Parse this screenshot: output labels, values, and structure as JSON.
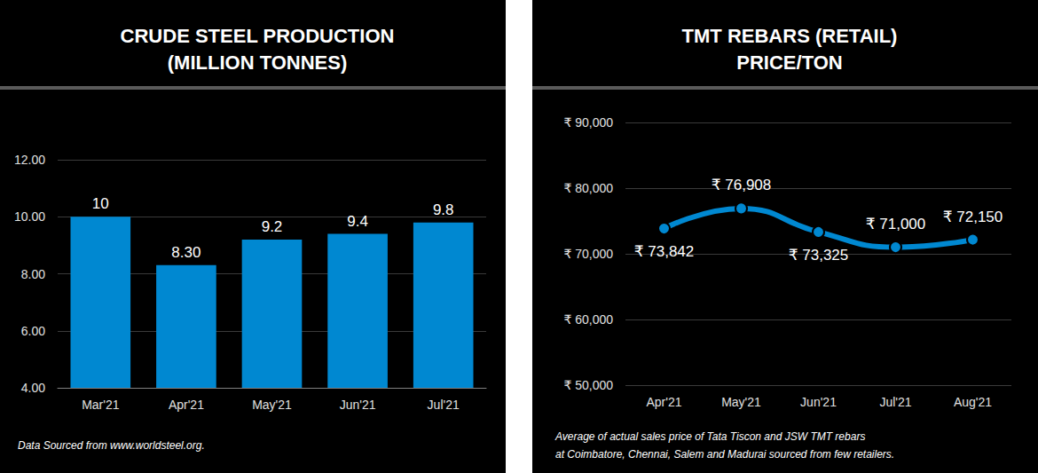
{
  "chart_data": [
    {
      "type": "bar",
      "title": "CRUDE STEEL PRODUCTION\n(MILLION TONNES)",
      "categories": [
        "Mar'21",
        "Apr'21",
        "May'21",
        "Jun'21",
        "Jul'21"
      ],
      "values": [
        10,
        8.3,
        9.2,
        9.4,
        9.8
      ],
      "value_labels": [
        "10",
        "8.30",
        "9.2",
        "9.4",
        "9.8"
      ],
      "color": "#0088d1",
      "ylim": [
        4,
        12
      ],
      "yticks": [
        {
          "value": 4,
          "label": "4.00"
        },
        {
          "value": 6,
          "label": "6.00"
        },
        {
          "value": 8,
          "label": "8.00"
        },
        {
          "value": 10,
          "label": "10.00"
        },
        {
          "value": 12,
          "label": "12.00"
        }
      ],
      "grid": true,
      "data_labels": true,
      "annotations": [
        "Data Sourced from www.worldsteel.org."
      ]
    },
    {
      "type": "line",
      "title": "TMT REBARS (RETAIL)\nPRICE/TON",
      "categories": [
        "Apr'21",
        "May'21",
        "Jun'21",
        "Jul'21",
        "Aug'21"
      ],
      "values": [
        73842,
        76908,
        73325,
        71000,
        72150
      ],
      "value_labels": [
        "₹ 73,842",
        "₹ 76,908",
        "₹ 73,325",
        "₹ 71,000",
        "₹ 72,150"
      ],
      "color": "#0088d1",
      "marker": "circle",
      "line_style": "solid",
      "ylim": [
        50000,
        90000
      ],
      "yticks": [
        {
          "value": 50000,
          "label": "₹ 50,000"
        },
        {
          "value": 60000,
          "label": "₹ 60,000"
        },
        {
          "value": 70000,
          "label": "₹ 70,000"
        },
        {
          "value": 80000,
          "label": "₹ 80,000"
        },
        {
          "value": 90000,
          "label": "₹ 90,000"
        }
      ],
      "grid": true,
      "data_labels": true,
      "annotations": [
        "Average of actual sales price of Tata Tiscon and JSW TMT rebars",
        "at Coimbatore, Chennai, Salem and Madurai sourced from few retailers."
      ]
    }
  ]
}
